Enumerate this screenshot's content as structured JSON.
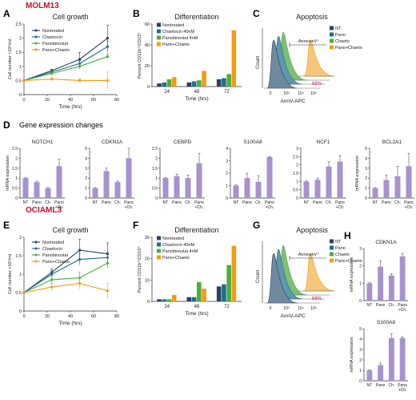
{
  "colors": {
    "red": "#c8102e",
    "navy": "#2d3f5e",
    "teal": "#1e6e8c",
    "green": "#4cad3f",
    "orange": "#f39c12",
    "purple": "#a592cf",
    "gray": "#555555",
    "pink": "#d4145a"
  },
  "legend4": [
    "Nontreated",
    "Chaetocin",
    "Panobinostat",
    "Pano+Chaeto"
  ],
  "row1": {
    "cell_line": "MOLM13",
    "A": "A",
    "B": "B",
    "C": "C"
  },
  "row3": {
    "cell_line": "OCIAML3",
    "E": "E",
    "F": "F",
    "G": "G",
    "H": "H"
  },
  "rowD": {
    "letter": "D",
    "title": "Gene expression changes",
    "ylabel": "mRNA expression",
    "cats": [
      "NT",
      "Pano",
      "Ch.",
      "Pano",
      "+Ch."
    ]
  },
  "chart_data": [
    {
      "id": "A",
      "type": "line",
      "title": "Cell growth",
      "xlabel": "Time (hrs)",
      "ylabel": "Cell number ×10⁶/ml",
      "x": [
        0,
        24,
        48,
        72
      ],
      "xlim": [
        0,
        80
      ],
      "xticks": [
        0,
        20,
        40,
        60,
        80
      ],
      "ylim": [
        0,
        2.5
      ],
      "yticks": [
        0,
        0.5,
        1,
        1.5,
        2,
        2.5
      ],
      "series": [
        {
          "name": "Nontreated",
          "values": [
            0.5,
            0.85,
            1.25,
            2.0
          ],
          "err": [
            0,
            0.05,
            0.25,
            0.45
          ]
        },
        {
          "name": "Chaetocin",
          "values": [
            0.5,
            0.8,
            1.1,
            1.7
          ],
          "err": [
            0,
            0.05,
            0.1,
            0.2
          ]
        },
        {
          "name": "Panobinostat",
          "values": [
            0.5,
            0.75,
            1.0,
            1.35
          ],
          "err": [
            0,
            0.05,
            0.1,
            0.1
          ]
        },
        {
          "name": "Pano+Chaeto",
          "values": [
            0.5,
            0.55,
            0.5,
            0.5
          ],
          "err": [
            0,
            0.05,
            0.05,
            0.3
          ]
        }
      ]
    },
    {
      "id": "B",
      "type": "bar",
      "title": "Differentiation",
      "xlabel": "Time (hrs)",
      "ylabel": "Percent CD11b⁺/CD15⁺",
      "categories": [
        "24",
        "48",
        "72"
      ],
      "ylim": [
        0,
        60
      ],
      "yticks": [
        0,
        20,
        40,
        60
      ],
      "legend": [
        "Nontreated",
        "Chaetocin 40nM",
        "Panobinostat 4nM",
        "Pano+Chaeto"
      ],
      "series": [
        {
          "name": "Nontreated",
          "values": [
            3,
            4,
            7
          ]
        },
        {
          "name": "Chaetocin 40nM",
          "values": [
            4,
            5,
            8
          ]
        },
        {
          "name": "Panobinostat 4nM",
          "values": [
            7,
            6,
            12
          ]
        },
        {
          "name": "Pano+Chaeto",
          "values": [
            9,
            15,
            54
          ]
        }
      ]
    },
    {
      "id": "C",
      "type": "histogram",
      "title": "Apoptosis",
      "xlabel": "AnnV-APC",
      "ylabel": "Count",
      "xticks": [
        "0",
        "10³",
        "10⁴",
        "10⁵"
      ],
      "gate_label": "AnnexinV⁺",
      "pct_label": "68%",
      "legend": [
        "NT",
        "Pano",
        "Chaeto",
        "Pano+Chaeto"
      ]
    },
    {
      "id": "D1",
      "type": "bar",
      "title": "NOTCH1",
      "ylim": [
        0,
        2.5
      ],
      "yticks": [
        0,
        0.5,
        1,
        1.5,
        2,
        2.5
      ],
      "values": [
        1.0,
        0.8,
        0.5,
        1.6
      ],
      "err": [
        0.03,
        0.05,
        0.03,
        0.35
      ]
    },
    {
      "id": "D2",
      "type": "bar",
      "title": "CDKN1A",
      "ylim": [
        0,
        5
      ],
      "yticks": [
        0,
        1,
        2,
        3,
        4,
        5
      ],
      "values": [
        1.0,
        2.7,
        1.6,
        4.0
      ],
      "err": [
        0.05,
        0.3,
        0.1,
        1.0
      ]
    },
    {
      "id": "D3",
      "type": "bar",
      "title": "CEBPD",
      "ylim": [
        0,
        2.5
      ],
      "yticks": [
        0,
        0.5,
        1,
        1.5,
        2,
        2.5
      ],
      "values": [
        1.0,
        1.1,
        1.0,
        1.75
      ],
      "err": [
        0.03,
        0.1,
        0.15,
        0.5
      ]
    },
    {
      "id": "D4",
      "type": "bar",
      "title": "S100A8",
      "ylim": [
        0,
        4
      ],
      "yticks": [
        0,
        1,
        2,
        3,
        4
      ],
      "values": [
        1.0,
        1.6,
        1.3,
        3.3
      ],
      "err": [
        0.05,
        0.4,
        0.5,
        0.05
      ]
    },
    {
      "id": "D5",
      "type": "bar",
      "title": "NCF1",
      "ylim": [
        0,
        3
      ],
      "yticks": [
        0,
        0.5,
        1,
        1.5,
        2,
        2.5,
        3
      ],
      "values": [
        1.0,
        1.1,
        1.9,
        2.2
      ],
      "err": [
        0.03,
        0.1,
        0.3,
        0.35
      ]
    },
    {
      "id": "D6",
      "type": "bar",
      "title": "BCL2A1",
      "ylim": [
        0,
        5
      ],
      "yticks": [
        0,
        1,
        2,
        3,
        4,
        5
      ],
      "values": [
        1.0,
        1.8,
        2.2,
        3.2
      ],
      "err": [
        0.05,
        0.5,
        1.0,
        1.3
      ]
    },
    {
      "id": "E",
      "type": "line",
      "title": "Cell growth",
      "xlabel": "Time (hrs)",
      "ylabel": "Cell number ×10⁶/ml",
      "x": [
        0,
        24,
        48,
        72
      ],
      "xlim": [
        0,
        80
      ],
      "xticks": [
        0,
        20,
        40,
        60,
        80
      ],
      "ylim": [
        0,
        2
      ],
      "yticks": [
        0,
        0.5,
        1,
        1.5,
        2
      ],
      "series": [
        {
          "name": "Nontreated",
          "values": [
            0.5,
            1.05,
            1.65,
            1.55
          ],
          "err": [
            0,
            0.1,
            0.3,
            0.3
          ]
        },
        {
          "name": "Chaetocin",
          "values": [
            0.5,
            1.0,
            1.4,
            1.45
          ],
          "err": [
            0,
            0.1,
            0.15,
            0.15
          ]
        },
        {
          "name": "Panobinostat",
          "values": [
            0.5,
            0.85,
            0.9,
            1.3
          ],
          "err": [
            0,
            0.1,
            0.15,
            0.15
          ]
        },
        {
          "name": "Pano+Chaeto",
          "values": [
            0.5,
            0.65,
            0.75,
            0.55
          ],
          "err": [
            0,
            0.1,
            0.15,
            0.2
          ]
        }
      ]
    },
    {
      "id": "F",
      "type": "bar",
      "title": "Differentiation",
      "xlabel": "Time (hrs)",
      "ylabel": "Percent CD11b⁺/CD15⁺",
      "categories": [
        "24",
        "48",
        "72"
      ],
      "ylim": [
        0,
        30
      ],
      "yticks": [
        0,
        10,
        20,
        30
      ],
      "legend": [
        "Nontreated",
        "Chaetocin 40nM",
        "Panobinostat 4nM",
        "Pano+Chaeto"
      ],
      "series": [
        {
          "name": "Nontreated",
          "values": [
            1,
            2,
            7
          ]
        },
        {
          "name": "Chaetocin 40nM",
          "values": [
            1,
            2,
            8
          ]
        },
        {
          "name": "Panobinostat 4nM",
          "values": [
            1,
            9,
            17
          ]
        },
        {
          "name": "Pano+Chaeto",
          "values": [
            3,
            6,
            26
          ]
        }
      ]
    },
    {
      "id": "G",
      "type": "histogram",
      "title": "Apoptosis",
      "xlabel": "AnnV-APC",
      "ylabel": "Count",
      "xticks": [
        "0",
        "10³",
        "10⁴",
        "10⁵"
      ],
      "gate_label": "AnnexinV⁺",
      "pct_label": "68%",
      "legend": [
        "NT",
        "Pano",
        "Chaeto",
        "Pano+Chaeto"
      ]
    },
    {
      "id": "H1",
      "type": "bar",
      "title": "CDKN1A",
      "ylim": [
        0,
        3
      ],
      "yticks": [
        0,
        1,
        2,
        3
      ],
      "values": [
        1.0,
        1.95,
        1.45,
        2.55
      ],
      "err": [
        0.03,
        0.35,
        0.1,
        0.15
      ]
    },
    {
      "id": "H2",
      "type": "bar",
      "title": "S100A8",
      "ylim": [
        0,
        5
      ],
      "yticks": [
        0,
        1,
        2,
        3,
        4,
        5
      ],
      "values": [
        1.0,
        1.5,
        4.1,
        4.1
      ],
      "err": [
        0.05,
        0.2,
        0.4,
        0.1
      ]
    }
  ]
}
